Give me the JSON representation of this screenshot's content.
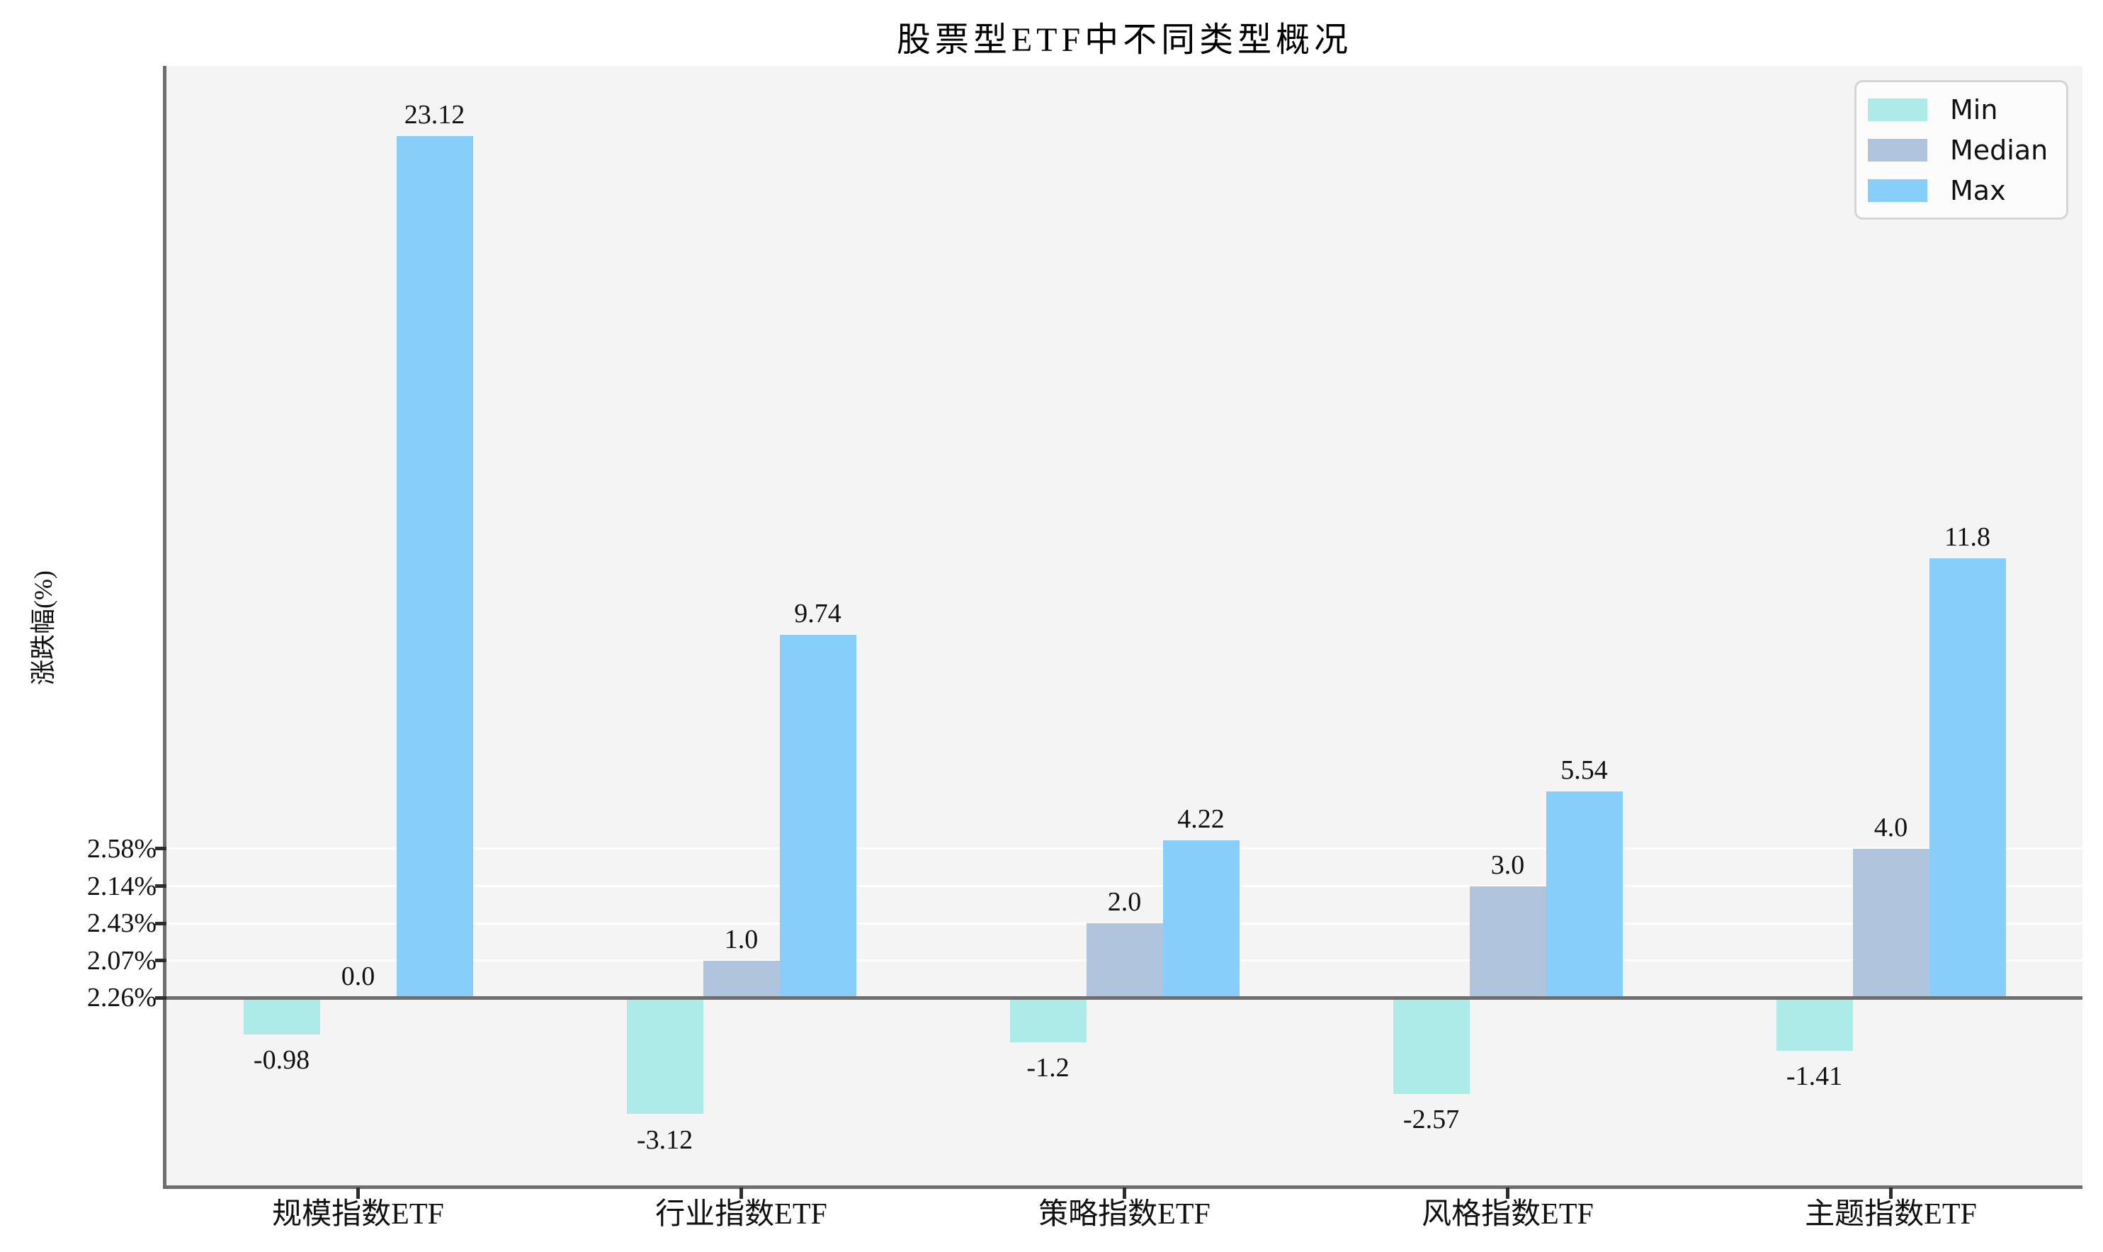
{
  "chart_data": {
    "type": "bar",
    "title": "股票型ETF中不同类型概况",
    "xlabel": "",
    "ylabel": "涨跌幅(%)",
    "categories": [
      "规模指数ETF",
      "行业指数ETF",
      "策略指数ETF",
      "风格指数ETF",
      "主题指数ETF"
    ],
    "series": [
      {
        "name": "Min",
        "color": "#ADEBE9",
        "values": [
          -0.98,
          -3.12,
          -1.2,
          -2.57,
          -1.41
        ],
        "labels": [
          "-0.98",
          "-3.12",
          "-1.2",
          "-2.57",
          "-1.41"
        ]
      },
      {
        "name": "Median",
        "color": "#B0C4DE",
        "values": [
          0.0,
          1.0,
          2.0,
          3.0,
          4.0
        ],
        "labels": [
          "0.0",
          "1.0",
          "2.0",
          "3.0",
          "4.0"
        ]
      },
      {
        "name": "Max",
        "color": "#87CEFA",
        "values": [
          23.12,
          9.74,
          4.22,
          5.54,
          11.8
        ],
        "labels": [
          "23.12",
          "9.74",
          "4.22",
          "5.54",
          "11.8"
        ]
      }
    ],
    "yticks": [
      {
        "value": 4,
        "label": "2.58%"
      },
      {
        "value": 3,
        "label": "2.14%"
      },
      {
        "value": 2,
        "label": "2.43%"
      },
      {
        "value": 1,
        "label": "2.07%"
      },
      {
        "value": 0,
        "label": "2.26%"
      }
    ],
    "ylim": [
      -5.03,
      25.0
    ],
    "grid": true,
    "legend_position": "upper right",
    "style": {
      "plot_background": "#f4f4f5",
      "figure_background": "#ffffff",
      "grid_color": "#ffffff",
      "spine_color": "#6e6e6e",
      "zero_line_color": "#6e6e6e",
      "text_color": "#111111",
      "legend_background": "#fcfcfc",
      "legend_border": "#d5d5d5"
    }
  }
}
